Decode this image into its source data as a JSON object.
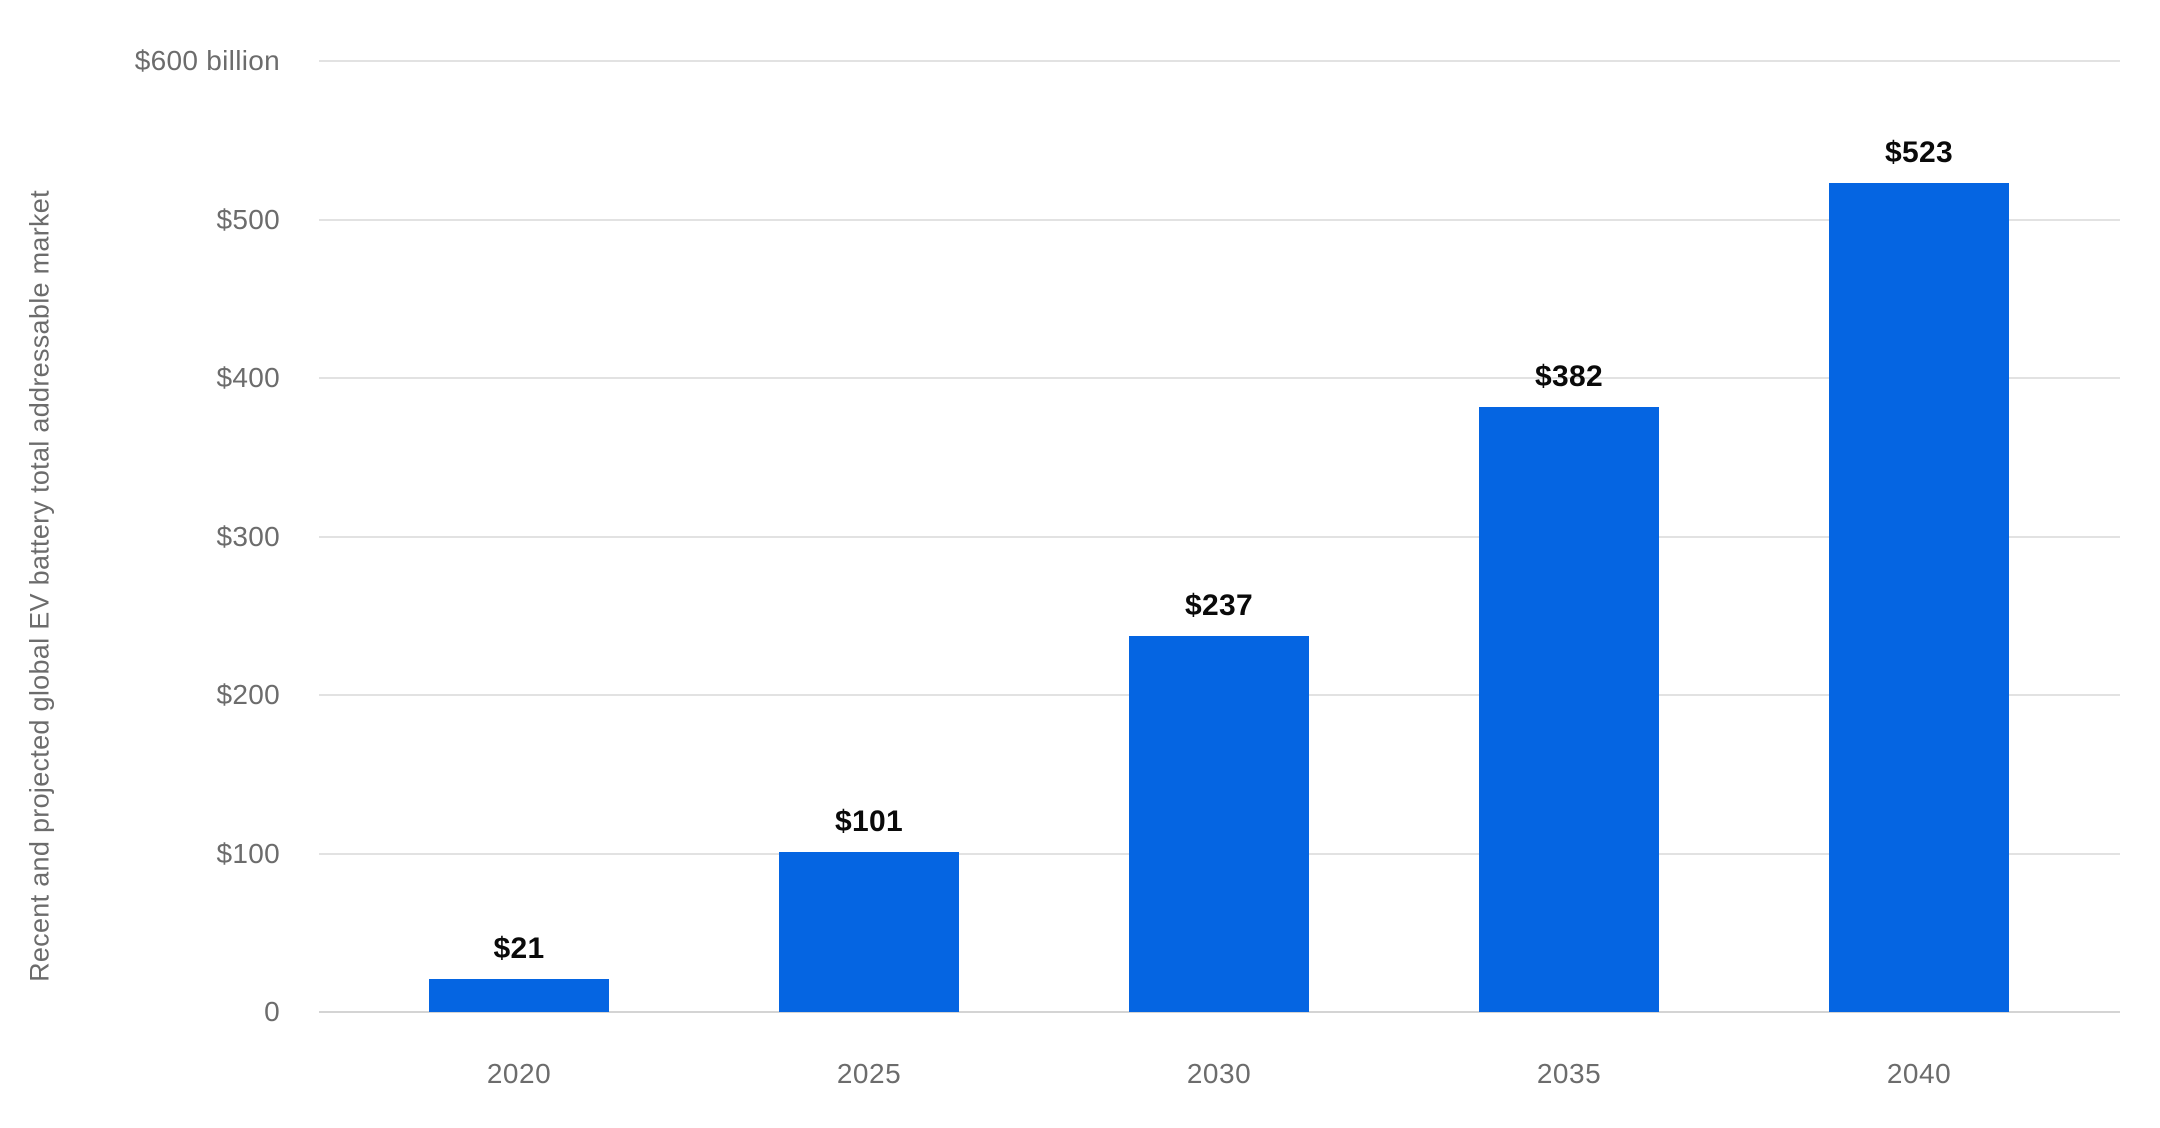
{
  "chart_data": {
    "type": "bar",
    "title": "",
    "xlabel": "",
    "ylabel": "Recent and projected global EV battery total addressable market",
    "categories": [
      "2020",
      "2025",
      "2030",
      "2035",
      "2040"
    ],
    "values": [
      21,
      101,
      237,
      382,
      523
    ],
    "value_labels": [
      "$21",
      "$101",
      "$237",
      "$382",
      "$523"
    ],
    "y_ticks": [
      {
        "value": 0,
        "label": "0"
      },
      {
        "value": 100,
        "label": "$100"
      },
      {
        "value": 200,
        "label": "$200"
      },
      {
        "value": 300,
        "label": "$300"
      },
      {
        "value": 400,
        "label": "$400"
      },
      {
        "value": 500,
        "label": "$500"
      },
      {
        "value": 600,
        "label": "$600 billion"
      }
    ],
    "ylim": [
      0,
      600
    ],
    "grid": "horizontal",
    "legend": "none",
    "bar_color": "#0565e2",
    "axis_text_color": "#6c6c6c",
    "value_label_color": "#0a0a0a",
    "gridline_color": "#e2e2e2"
  }
}
